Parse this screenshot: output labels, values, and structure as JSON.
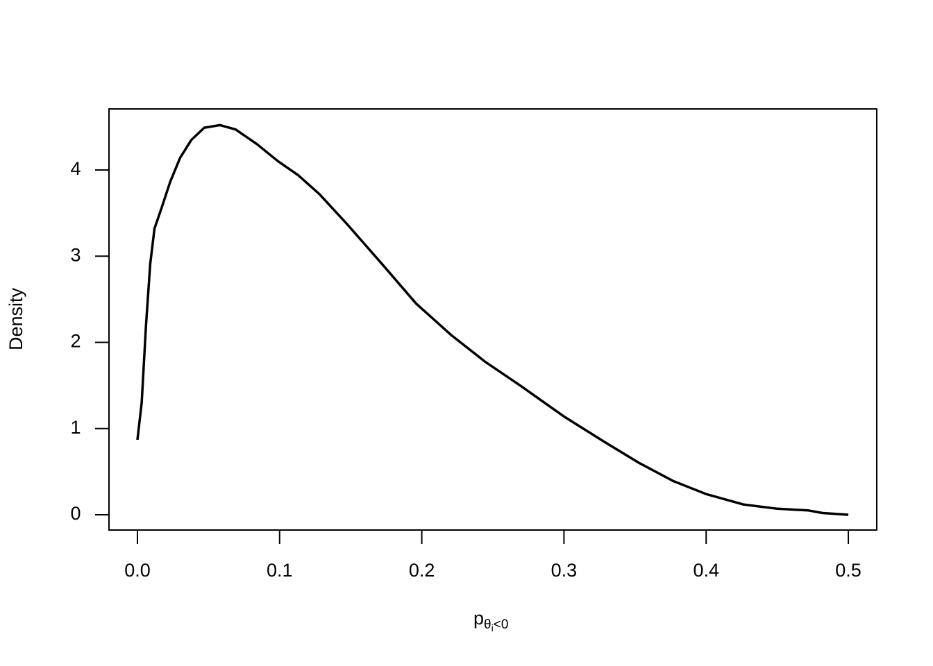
{
  "chart_data": {
    "type": "line",
    "ylabel": "Density",
    "xlabel": {
      "base": "p",
      "sub": "θ",
      "subsub": "i",
      "sub2": "<0"
    },
    "x": [
      0,
      0.003,
      0.006,
      0.009,
      0.012,
      0.017,
      0.023,
      0.03,
      0.038,
      0.047,
      0.058,
      0.069,
      0.084,
      0.099,
      0.113,
      0.128,
      0.147,
      0.172,
      0.196,
      0.221,
      0.245,
      0.27,
      0.3,
      0.328,
      0.353,
      0.377,
      0.4,
      0.426,
      0.45,
      0.472,
      0.482,
      0.5
    ],
    "series": [
      {
        "color": "#000000",
        "values": [
          0.87,
          1.3,
          2.19,
          2.91,
          3.32,
          3.56,
          3.86,
          4.14,
          4.35,
          4.49,
          4.52,
          4.47,
          4.3,
          4.1,
          3.94,
          3.72,
          3.38,
          2.91,
          2.45,
          2.08,
          1.77,
          1.49,
          1.14,
          0.85,
          0.6,
          0.39,
          0.24,
          0.12,
          0.07,
          0.05,
          0.02,
          0.0
        ]
      }
    ],
    "xlim": [
      -0.02,
      0.52
    ],
    "ylim": [
      -0.177,
      4.708
    ],
    "xticks": [
      {
        "value": 0,
        "label": "0.0"
      },
      0.1,
      0.2,
      0.3,
      0.4,
      0.5
    ],
    "yticks": [
      0,
      1,
      2,
      3,
      4
    ]
  }
}
